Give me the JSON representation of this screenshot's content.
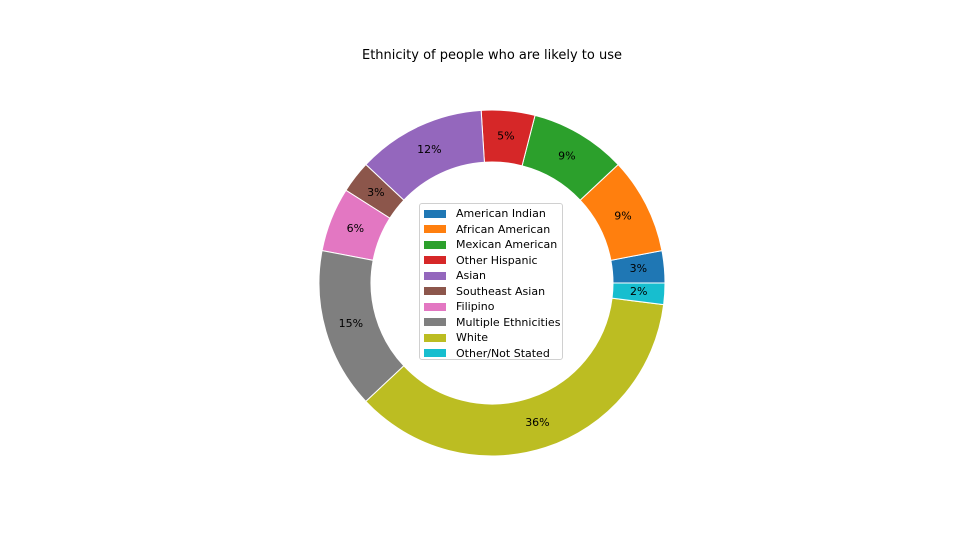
{
  "chart_data": {
    "type": "pie",
    "style": "donut",
    "title": "Ethnicity of people who are likely to use",
    "start_angle_deg": 0,
    "direction": "counterclockwise",
    "slices": [
      {
        "label": "American Indian",
        "value": 3,
        "pct_label": "3%",
        "color": "#1f77b4"
      },
      {
        "label": "African American",
        "value": 9,
        "pct_label": "9%",
        "color": "#ff7f0e"
      },
      {
        "label": "Mexican American",
        "value": 9,
        "pct_label": "9%",
        "color": "#2ca02c"
      },
      {
        "label": "Other Hispanic",
        "value": 5,
        "pct_label": "5%",
        "color": "#d62728"
      },
      {
        "label": "Asian",
        "value": 12,
        "pct_label": "12%",
        "color": "#9467bd"
      },
      {
        "label": "Southeast Asian",
        "value": 3,
        "pct_label": "3%",
        "color": "#8c564b"
      },
      {
        "label": "Filipino",
        "value": 6,
        "pct_label": "6%",
        "color": "#e377c2"
      },
      {
        "label": "Multiple Ethnicities",
        "value": 15,
        "pct_label": "15%",
        "color": "#7f7f7f"
      },
      {
        "label": "White",
        "value": 36,
        "pct_label": "36%",
        "color": "#bcbd22"
      },
      {
        "label": "Other/Not Stated",
        "value": 2,
        "pct_label": "2%",
        "color": "#17becf"
      }
    ],
    "legend_position": "center"
  }
}
